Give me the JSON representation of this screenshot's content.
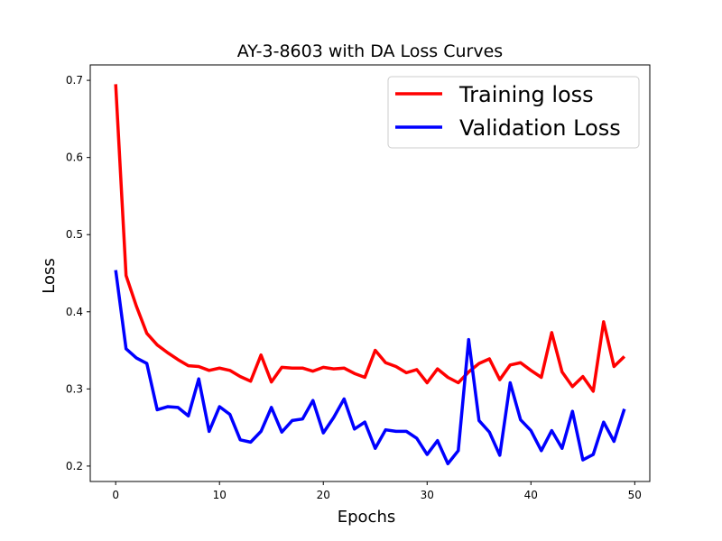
{
  "chart_data": {
    "type": "line",
    "title": "AY-3-8603 with DA Loss Curves",
    "xlabel": "Epochs",
    "ylabel": "Loss",
    "xlim": [
      -2.45,
      51.45
    ],
    "ylim": [
      0.18,
      0.72
    ],
    "xticks": [
      0,
      10,
      20,
      30,
      40,
      50
    ],
    "yticks": [
      0.2,
      0.3,
      0.4,
      0.5,
      0.6,
      0.7
    ],
    "xtick_labels": [
      "0",
      "10",
      "20",
      "30",
      "40",
      "50"
    ],
    "ytick_labels": [
      "0.2",
      "0.3",
      "0.4",
      "0.5",
      "0.6",
      "0.7"
    ],
    "grid": false,
    "legend_position": "top-right",
    "x": [
      0,
      1,
      2,
      3,
      4,
      5,
      6,
      7,
      8,
      9,
      10,
      11,
      12,
      13,
      14,
      15,
      16,
      17,
      18,
      19,
      20,
      21,
      22,
      23,
      24,
      25,
      26,
      27,
      28,
      29,
      30,
      31,
      32,
      33,
      34,
      35,
      36,
      37,
      38,
      39,
      40,
      41,
      42,
      43,
      44,
      45,
      46,
      47,
      48,
      49
    ],
    "series": [
      {
        "name": "Training loss",
        "color": "#ff0000",
        "values": [
          0.695,
          0.447,
          0.407,
          0.372,
          0.357,
          0.347,
          0.338,
          0.33,
          0.329,
          0.324,
          0.327,
          0.324,
          0.316,
          0.31,
          0.344,
          0.309,
          0.328,
          0.327,
          0.327,
          0.323,
          0.328,
          0.326,
          0.327,
          0.32,
          0.315,
          0.35,
          0.334,
          0.329,
          0.321,
          0.325,
          0.308,
          0.326,
          0.315,
          0.308,
          0.322,
          0.333,
          0.339,
          0.312,
          0.331,
          0.334,
          0.324,
          0.315,
          0.373,
          0.322,
          0.303,
          0.316,
          0.297,
          0.387,
          0.329,
          0.342
        ]
      },
      {
        "name": "Validation Loss",
        "color": "#0000ff",
        "values": [
          0.454,
          0.352,
          0.34,
          0.333,
          0.273,
          0.277,
          0.276,
          0.265,
          0.313,
          0.245,
          0.277,
          0.267,
          0.234,
          0.231,
          0.245,
          0.276,
          0.244,
          0.259,
          0.261,
          0.285,
          0.243,
          0.263,
          0.287,
          0.248,
          0.257,
          0.223,
          0.247,
          0.245,
          0.245,
          0.236,
          0.215,
          0.233,
          0.203,
          0.22,
          0.364,
          0.259,
          0.244,
          0.214,
          0.308,
          0.26,
          0.246,
          0.22,
          0.246,
          0.223,
          0.271,
          0.208,
          0.215,
          0.257,
          0.232,
          0.274
        ]
      }
    ]
  }
}
